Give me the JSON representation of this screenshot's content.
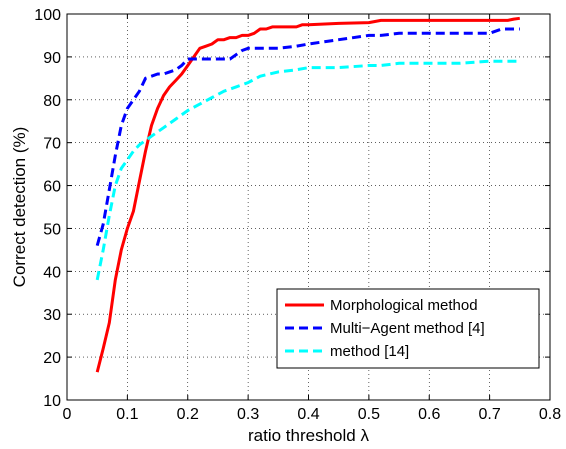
{
  "chart_data": {
    "type": "line",
    "xlabel": "ratio threshold λ",
    "ylabel": "Correct detection (%)",
    "xlim": [
      0,
      0.8
    ],
    "ylim": [
      10,
      100
    ],
    "xticks": [
      "0",
      "0.1",
      "0.2",
      "0.3",
      "0.4",
      "0.5",
      "0.6",
      "0.7",
      "0.8"
    ],
    "yticks": [
      "10",
      "20",
      "30",
      "40",
      "50",
      "60",
      "70",
      "80",
      "90",
      "100"
    ],
    "grid": true,
    "legend_position": "bottom-right",
    "series": [
      {
        "name": "Morphological method",
        "color": "#ff0000",
        "dash": "solid",
        "x": [
          0.05,
          0.06,
          0.07,
          0.08,
          0.09,
          0.1,
          0.11,
          0.12,
          0.13,
          0.14,
          0.15,
          0.16,
          0.17,
          0.18,
          0.19,
          0.2,
          0.21,
          0.22,
          0.23,
          0.24,
          0.25,
          0.26,
          0.27,
          0.28,
          0.29,
          0.3,
          0.31,
          0.32,
          0.33,
          0.34,
          0.35,
          0.36,
          0.37,
          0.38,
          0.39,
          0.4,
          0.45,
          0.5,
          0.52,
          0.55,
          0.6,
          0.65,
          0.7,
          0.72,
          0.73,
          0.74,
          0.75
        ],
        "y": [
          16.5,
          22,
          28,
          38,
          45,
          50,
          54,
          61,
          68,
          74,
          78,
          81,
          83,
          84.5,
          86,
          88,
          90,
          92,
          92.5,
          93,
          94,
          94,
          94.5,
          94.5,
          95,
          95,
          95.5,
          96.5,
          96.5,
          97,
          97,
          97,
          97,
          97,
          97.5,
          97.5,
          97.8,
          98,
          98.5,
          98.5,
          98.5,
          98.5,
          98.5,
          98.5,
          98.5,
          98.8,
          99
        ]
      },
      {
        "name": "Multi−Agent method  [4]",
        "color": "#0000ff",
        "dash": "dashed",
        "x": [
          0.05,
          0.06,
          0.07,
          0.08,
          0.09,
          0.1,
          0.11,
          0.12,
          0.13,
          0.14,
          0.15,
          0.16,
          0.17,
          0.18,
          0.19,
          0.2,
          0.21,
          0.22,
          0.23,
          0.24,
          0.25,
          0.26,
          0.27,
          0.28,
          0.29,
          0.3,
          0.35,
          0.38,
          0.4,
          0.45,
          0.5,
          0.52,
          0.55,
          0.6,
          0.65,
          0.7,
          0.72,
          0.75
        ],
        "y": [
          46,
          51,
          59,
          67,
          74,
          78,
          80,
          82,
          85,
          85.5,
          86,
          86,
          86.5,
          87,
          88,
          89.5,
          89.5,
          89.5,
          89.5,
          89.5,
          89.5,
          89.5,
          89.5,
          90.5,
          91.5,
          92,
          92,
          92.5,
          93,
          94,
          95,
          95,
          95.5,
          95.5,
          95.5,
          95.5,
          96.5,
          96.5
        ]
      },
      {
        "name": "method [14]",
        "color": "#00ffff",
        "dash": "dashed",
        "x": [
          0.05,
          0.06,
          0.07,
          0.08,
          0.09,
          0.1,
          0.11,
          0.12,
          0.13,
          0.14,
          0.15,
          0.16,
          0.17,
          0.18,
          0.19,
          0.2,
          0.22,
          0.24,
          0.26,
          0.28,
          0.3,
          0.32,
          0.35,
          0.38,
          0.4,
          0.45,
          0.5,
          0.52,
          0.55,
          0.6,
          0.65,
          0.7,
          0.72,
          0.75
        ],
        "y": [
          38,
          45,
          53,
          60,
          64,
          66,
          68,
          69.5,
          70.5,
          71.5,
          72.5,
          73.5,
          74.5,
          75.5,
          76.5,
          77.5,
          79,
          80.5,
          82,
          83,
          84,
          85.5,
          86.5,
          87,
          87.5,
          87.5,
          88,
          88,
          88.5,
          88.5,
          88.5,
          89,
          89,
          89
        ]
      }
    ]
  }
}
